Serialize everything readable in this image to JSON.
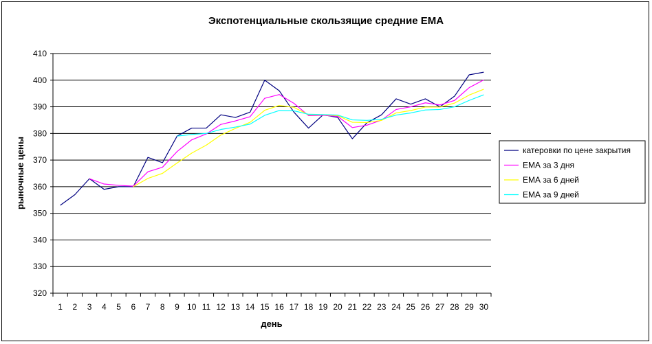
{
  "chart_data": {
    "type": "line",
    "title": "Экспотенциальные скользящие средние ЕМА",
    "xlabel": "день",
    "ylabel": "рыночные цены",
    "ylim": [
      320,
      410
    ],
    "yticks": [
      320,
      330,
      340,
      350,
      360,
      370,
      380,
      390,
      400,
      410
    ],
    "grid": true,
    "legend_position": "right",
    "x": [
      1,
      2,
      3,
      4,
      5,
      6,
      7,
      8,
      9,
      10,
      11,
      12,
      13,
      14,
      15,
      16,
      17,
      18,
      19,
      20,
      21,
      22,
      23,
      24,
      25,
      26,
      27,
      28,
      29,
      30
    ],
    "series": [
      {
        "name": "катеровки по цене закрытия",
        "color": "#000080",
        "values": [
          353,
          357,
          363,
          359,
          360,
          360,
          371,
          369,
          379,
          382,
          382,
          387,
          386,
          388,
          400,
          396,
          388,
          382,
          387,
          386,
          378,
          384,
          387,
          393,
          391,
          393,
          390,
          394,
          402,
          403
        ]
      },
      {
        "name": "ЕМА за 3 дня",
        "color": "#ff00ff",
        "values": [
          null,
          null,
          363,
          361,
          360.5,
          360.2,
          365.6,
          367.3,
          373.2,
          377.6,
          379.8,
          383.4,
          384.7,
          386.3,
          393.2,
          394.6,
          391.3,
          386.7,
          386.8,
          386.4,
          382.2,
          383.1,
          385,
          389,
          390,
          391.5,
          390.7,
          392.4,
          397.2,
          400.1
        ]
      },
      {
        "name": "ЕМА за 6 дней",
        "color": "#ffff00",
        "values": [
          null,
          null,
          null,
          null,
          null,
          360,
          363.1,
          365,
          368.9,
          372.6,
          375.6,
          379.4,
          381.9,
          384.2,
          388.7,
          390.5,
          389.8,
          387,
          387,
          386.7,
          384.2,
          384.1,
          384.9,
          387.7,
          388.6,
          389.9,
          389.9,
          391.4,
          394.4,
          396.6
        ]
      },
      {
        "name": "ЕМА за 9 дней",
        "color": "#00ffff",
        "values": [
          null,
          null,
          null,
          null,
          null,
          null,
          null,
          null,
          379,
          379.6,
          380,
          381.5,
          382.4,
          383.5,
          386.8,
          388.6,
          388.5,
          387.2,
          387.1,
          386.9,
          385.1,
          384.9,
          385.3,
          386.9,
          387.7,
          388.8,
          389,
          390,
          392.4,
          394.5
        ]
      }
    ]
  }
}
